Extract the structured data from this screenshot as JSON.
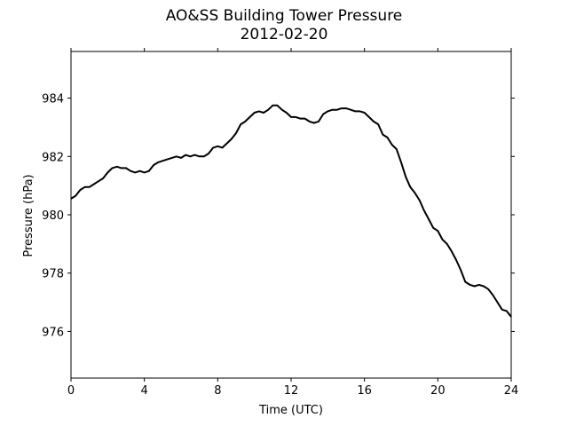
{
  "chart_data": {
    "type": "line",
    "title": "AO&SS Building Tower Pressure",
    "subtitle": "2012-02-20",
    "xlabel": "Time (UTC)",
    "ylabel": "Pressure (hPa)",
    "xlim": [
      0,
      24
    ],
    "ylim": [
      974.4,
      985.6
    ],
    "xticks": [
      0,
      4,
      8,
      12,
      16,
      20,
      24
    ],
    "yticks": [
      976,
      978,
      980,
      982,
      984
    ],
    "grid": false,
    "series": [
      {
        "color": "#000000",
        "x": [
          0,
          0.25,
          0.5,
          0.75,
          1,
          1.25,
          1.5,
          1.75,
          2,
          2.25,
          2.5,
          2.75,
          3,
          3.25,
          3.5,
          3.75,
          4,
          4.25,
          4.5,
          4.75,
          5,
          5.25,
          5.5,
          5.75,
          6,
          6.25,
          6.5,
          6.75,
          7,
          7.25,
          7.5,
          7.75,
          8,
          8.25,
          8.5,
          8.75,
          9,
          9.25,
          9.5,
          9.75,
          10,
          10.25,
          10.5,
          10.75,
          11,
          11.25,
          11.5,
          11.75,
          12,
          12.25,
          12.5,
          12.75,
          13,
          13.25,
          13.5,
          13.75,
          14,
          14.25,
          14.5,
          14.75,
          15,
          15.25,
          15.5,
          15.75,
          16,
          16.25,
          16.5,
          16.75,
          17,
          17.25,
          17.5,
          17.75,
          18,
          18.25,
          18.5,
          18.75,
          19,
          19.25,
          19.5,
          19.75,
          20,
          20.25,
          20.5,
          20.75,
          21,
          21.25,
          21.5,
          21.75,
          22,
          22.25,
          22.5,
          22.75,
          23,
          23.25,
          23.5,
          23.75,
          24
        ],
        "y": [
          980.55,
          980.65,
          980.85,
          980.95,
          980.95,
          981.05,
          981.15,
          981.25,
          981.45,
          981.6,
          981.65,
          981.6,
          981.6,
          981.5,
          981.45,
          981.5,
          981.45,
          981.5,
          981.7,
          981.8,
          981.85,
          981.9,
          981.95,
          982.0,
          981.95,
          982.05,
          982.0,
          982.05,
          982.0,
          982.0,
          982.1,
          982.3,
          982.35,
          982.3,
          982.45,
          982.6,
          982.8,
          983.1,
          983.2,
          983.35,
          983.5,
          983.55,
          983.5,
          983.6,
          983.75,
          983.75,
          983.6,
          983.5,
          983.35,
          983.35,
          983.3,
          983.3,
          983.2,
          983.15,
          983.2,
          983.45,
          983.55,
          983.6,
          983.6,
          983.65,
          983.65,
          983.6,
          983.55,
          983.55,
          983.5,
          983.35,
          983.2,
          983.1,
          982.75,
          982.65,
          982.4,
          982.25,
          981.8,
          981.3,
          980.95,
          980.75,
          980.5,
          980.15,
          979.85,
          979.55,
          979.45,
          979.15,
          979.0,
          978.75,
          978.45,
          978.1,
          977.7,
          977.6,
          977.55,
          977.6,
          977.55,
          977.45,
          977.25,
          977.0,
          976.75,
          976.7,
          976.5
        ]
      }
    ]
  }
}
